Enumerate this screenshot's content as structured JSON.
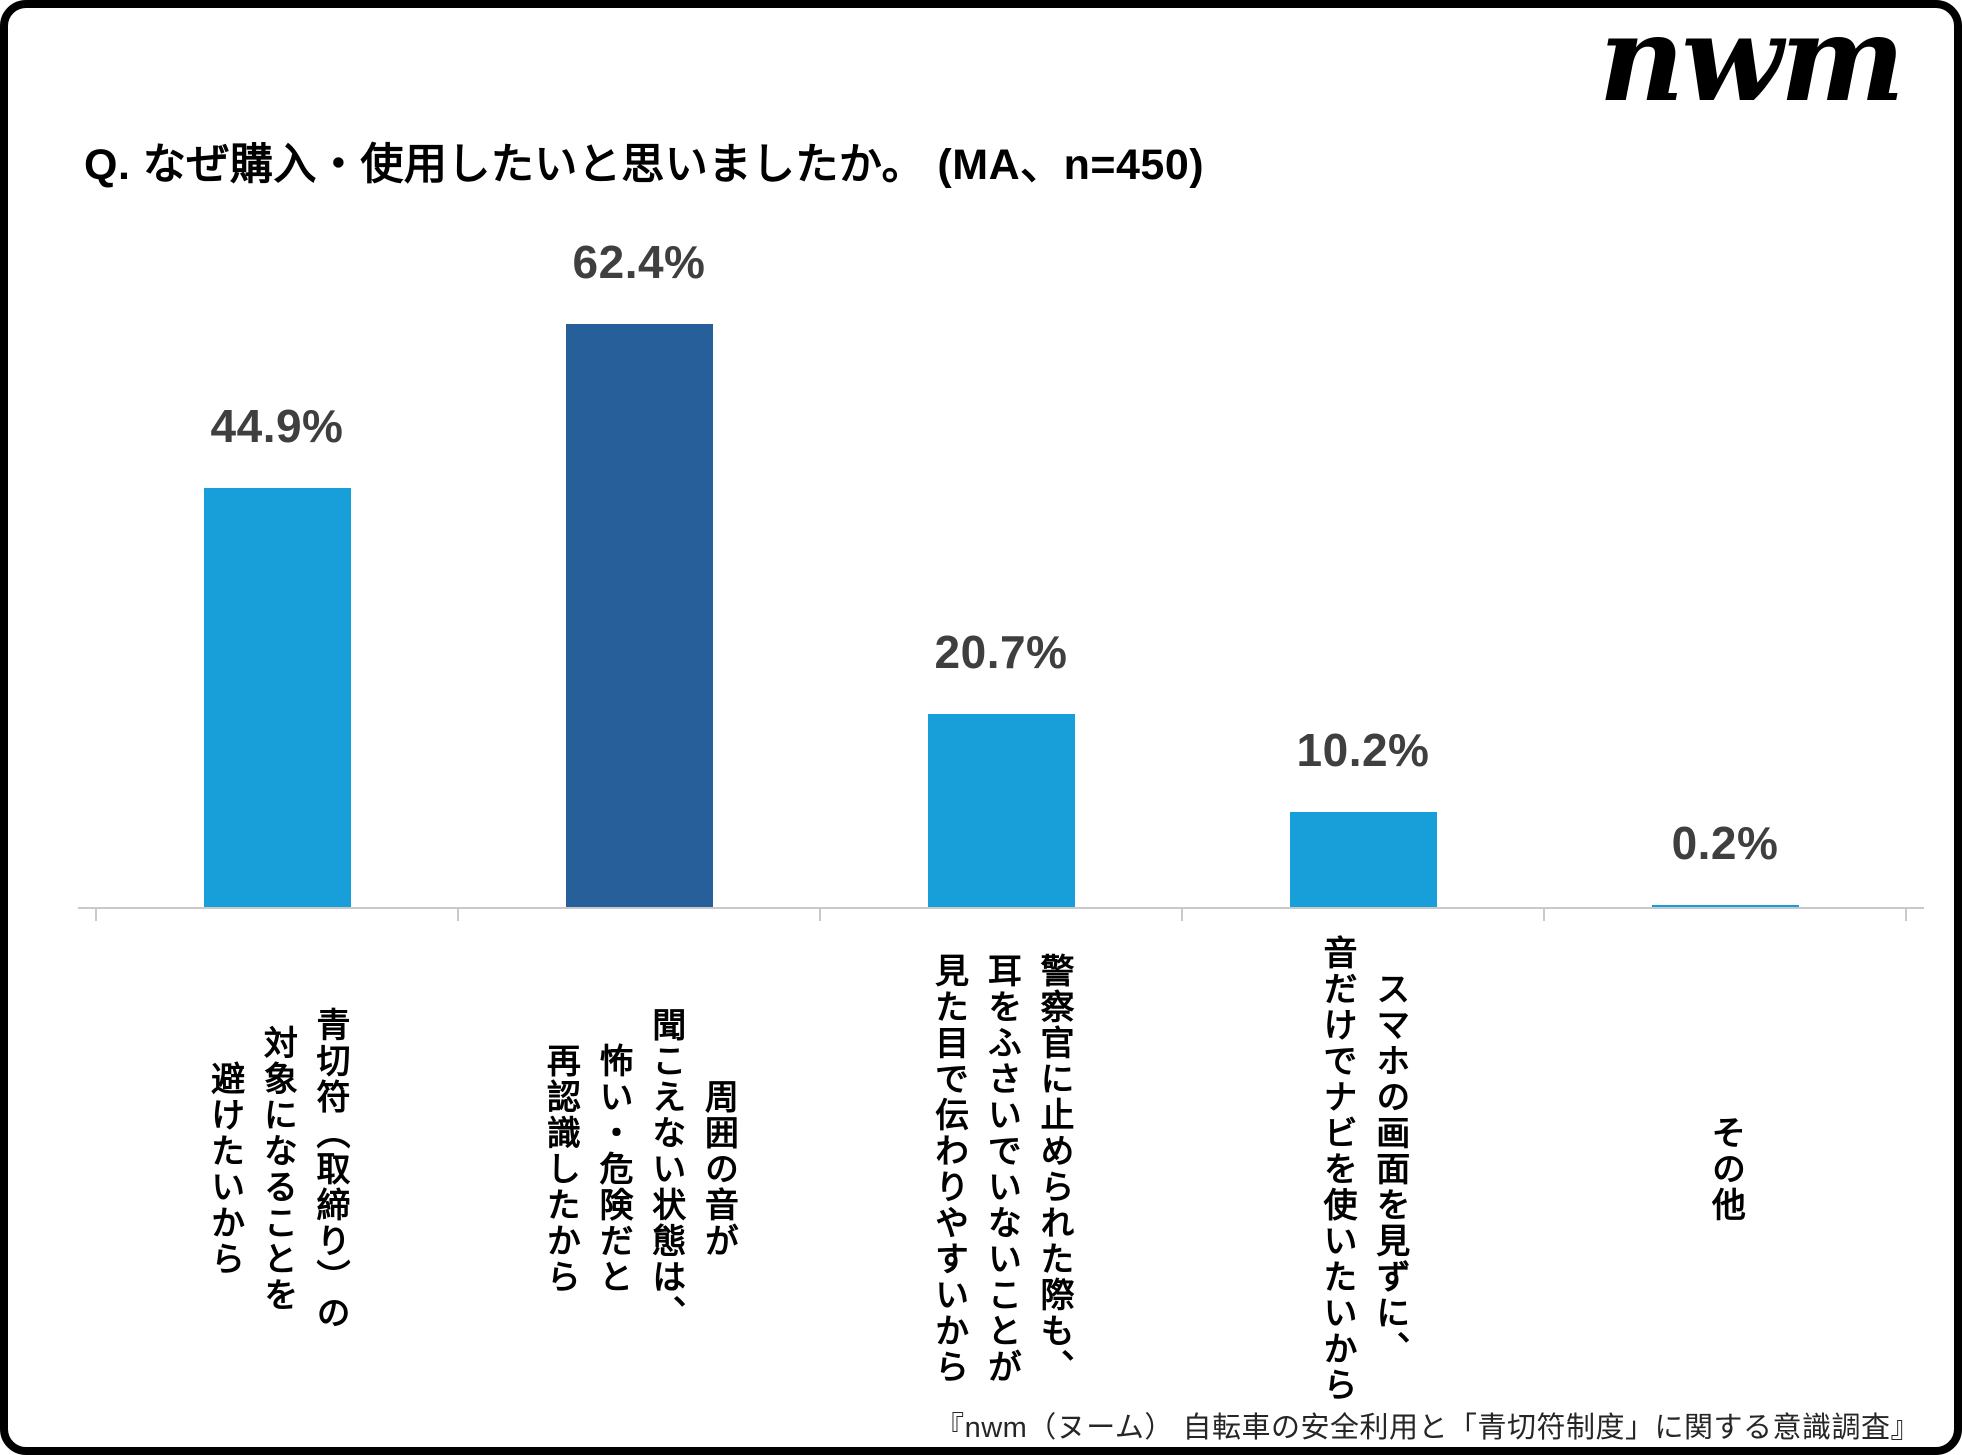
{
  "logo": "nwm",
  "title": "Q. なぜ購入・使用したいと思いましたか。 (MA、n=450)",
  "footer": "『nwm（ヌーム） 自転車の安全利用と「青切符制度」に関する意識調査』",
  "colors": {
    "bar_default": "#189ED9",
    "bar_highlight": "#275F9B",
    "value_label": "#3F3F3F",
    "axis": "#C9C9C9",
    "text": "#000000"
  },
  "chart_data": {
    "type": "bar",
    "title": "なぜ購入・使用したいと思いましたか。",
    "survey_note": "MA、n=450",
    "unit": "%",
    "categories": [
      "青切符（取締り）の対象になることを避けたいから",
      "周囲の音が聞こえない状態は、怖い・危険だと再認識したから",
      "警察官に止められた際も、耳をふさいでいないことが見た目で伝わりやすいから",
      "スマホの画面を見ずに、音だけでナビを使いたいから",
      "その他"
    ],
    "category_lines": [
      [
        "青切符（取締り）の",
        "対象になることを",
        "避けたいから"
      ],
      [
        "周囲の音が",
        "聞こえない状態は、",
        "怖い・危険だと",
        "再認識したから"
      ],
      [
        "警察官に止められた際も、",
        "耳をふさいでいないことが",
        "見た目で伝わりやすいから"
      ],
      [
        "スマホの画面を見ずに、",
        "音だけでナビを使いたいから"
      ],
      [
        "その他"
      ]
    ],
    "values": [
      44.9,
      62.4,
      20.7,
      10.2,
      0.2
    ],
    "value_labels": [
      "44.9%",
      "62.4%",
      "20.7%",
      "10.2%",
      "0.2%"
    ],
    "bar_colors": [
      "#189ED9",
      "#275F9B",
      "#189ED9",
      "#189ED9",
      "#189ED9"
    ],
    "highlighted_index": 1,
    "ylim": [
      0,
      70
    ],
    "xlabel": "",
    "ylabel": "",
    "grid": false,
    "legend": "none",
    "value_label_position": "above-bar",
    "category_label_orientation": "vertical"
  }
}
